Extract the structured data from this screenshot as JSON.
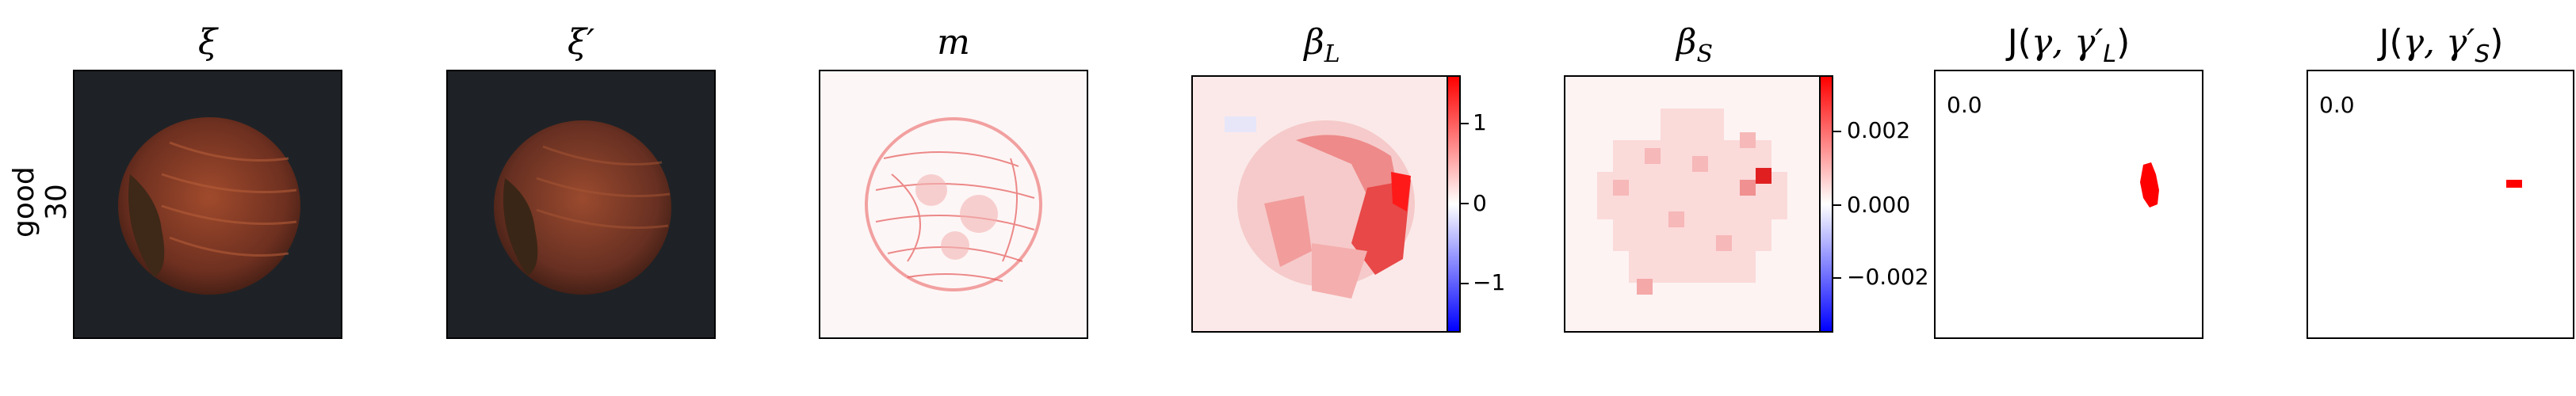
{
  "row_label": {
    "line1": "good",
    "line2": "30"
  },
  "panels": [
    {
      "title": "ξ"
    },
    {
      "title": "ξ′"
    },
    {
      "title": "m"
    },
    {
      "title": "β",
      "sub": "L",
      "colorbar": [
        "1",
        "0",
        "−1"
      ]
    },
    {
      "title": "β",
      "sub": "S",
      "colorbar": [
        "0.002",
        "0.000",
        "−0.002"
      ]
    },
    {
      "title_prefix": "J(",
      "title_args": "γ, γ′",
      "sub": "L",
      "title_suffix": ")",
      "corner_value": "0.0"
    },
    {
      "title_prefix": "J(",
      "title_args": "γ, γ′",
      "sub": "S",
      "title_suffix": ")",
      "corner_value": "0.0"
    }
  ],
  "colors": {
    "accent_red": "#ff0000",
    "accent_blue": "#0000ff",
    "photo_bg": "#1e2226",
    "nut": "#7a3a24"
  },
  "icons": [
    "hazelnut-image",
    "heatmap",
    "colorbar"
  ]
}
